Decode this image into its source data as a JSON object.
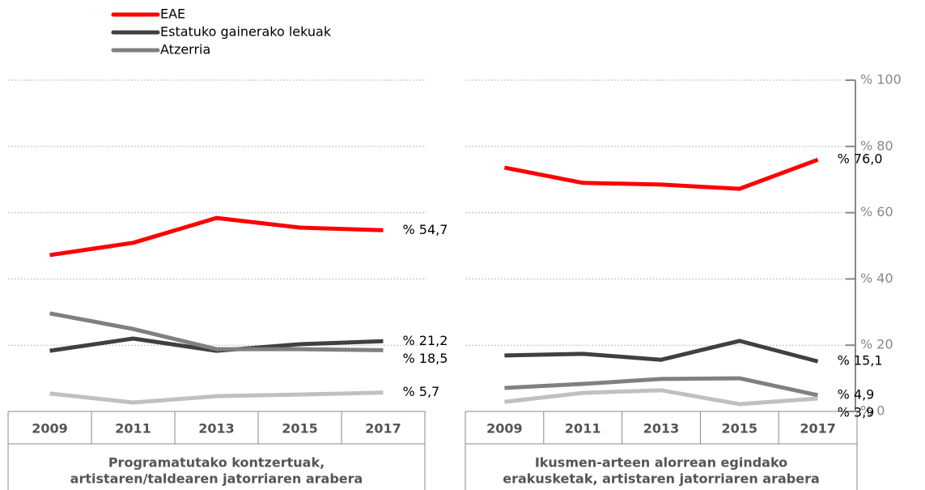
{
  "chart_data": [
    {
      "type": "line",
      "categories": [
        "2009",
        "2011",
        "2013",
        "2015",
        "2017"
      ],
      "xlabel": [
        "Programatutako kontzertuak,",
        "artistaren/taldearen jatorriaren arabera"
      ],
      "ylim": [
        0,
        100
      ],
      "yticks": [
        0,
        20,
        40,
        60,
        80,
        100
      ],
      "grid": true,
      "series": [
        {
          "name": "EAE",
          "color": "#ff0000",
          "values": [
            47.2,
            50.9,
            58.4,
            55.5,
            54.7
          ],
          "value_labels": [
            null,
            null,
            null,
            null,
            "% 54,7"
          ]
        },
        {
          "name": "Estatuko gainerako lekuak",
          "color": "#404040",
          "values": [
            18.3,
            22.0,
            18.3,
            20.3,
            21.2
          ],
          "value_labels": [
            null,
            null,
            null,
            null,
            "% 21,2"
          ]
        },
        {
          "name": "Atzerria",
          "color": "#808080",
          "values": [
            29.6,
            24.9,
            18.8,
            18.8,
            18.5
          ],
          "value_labels": [
            null,
            null,
            null,
            null,
            "% 18,5"
          ]
        },
        {
          "color": "#c0c0c0",
          "values": [
            5.4,
            2.7,
            4.6,
            5.1,
            5.7
          ],
          "value_labels": [
            null,
            null,
            null,
            null,
            "% 5,7"
          ]
        }
      ]
    },
    {
      "type": "line",
      "categories": [
        "2009",
        "2011",
        "2013",
        "2015",
        "2017"
      ],
      "xlabel": [
        "Ikusmen-arteen alorrean egindako",
        "erakusketak, artistaren jatorriaren arabera"
      ],
      "ylim": [
        0,
        100
      ],
      "yticks": [
        {
          "value": 0,
          "label": "% 0"
        },
        {
          "value": 20,
          "label": "% 20"
        },
        {
          "value": 40,
          "label": "% 40"
        },
        {
          "value": 60,
          "label": "% 60"
        },
        {
          "value": 80,
          "label": "% 80"
        },
        {
          "value": 100,
          "label": "% 100"
        }
      ],
      "grid": true,
      "series": [
        {
          "color": "#ff0000",
          "values": [
            73.6,
            69.0,
            68.5,
            67.2,
            76.0
          ],
          "value_labels": [
            null,
            null,
            null,
            null,
            "% 76,0"
          ]
        },
        {
          "color": "#404040",
          "values": [
            16.9,
            17.4,
            15.6,
            21.3,
            15.1
          ],
          "value_labels": [
            null,
            null,
            null,
            null,
            "% 15,1"
          ]
        },
        {
          "color": "#808080",
          "values": [
            7.1,
            8.3,
            9.8,
            10.0,
            4.9
          ],
          "value_labels": [
            null,
            null,
            null,
            null,
            "% 4,9"
          ]
        },
        {
          "color": "#c0c0c0",
          "values": [
            2.9,
            5.6,
            6.4,
            2.2,
            3.9
          ],
          "value_labels": [
            null,
            null,
            null,
            null,
            "% 3,9"
          ]
        }
      ]
    }
  ]
}
